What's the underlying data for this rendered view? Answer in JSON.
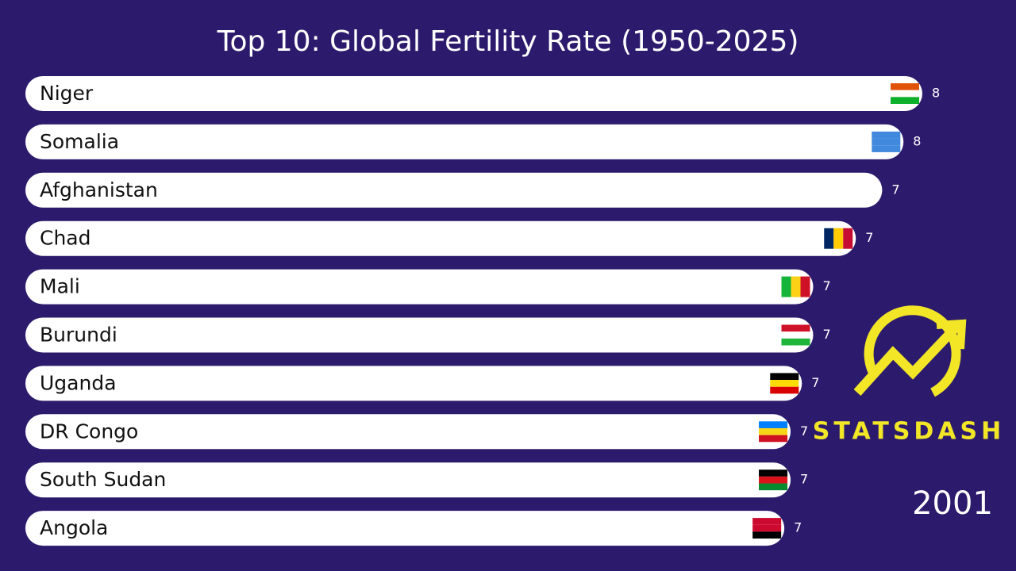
{
  "chart_data": {
    "type": "bar",
    "orientation": "horizontal",
    "title": "Top 10: Global Fertility Rate (1950-2025)",
    "categories": [
      "Niger",
      "Somalia",
      "Afghanistan",
      "Chad",
      "Mali",
      "Burundi",
      "Uganda",
      "DR Congo",
      "South Sudan",
      "Angola"
    ],
    "values": [
      7.7,
      7.55,
      7.38,
      7.17,
      6.83,
      6.83,
      6.74,
      6.65,
      6.65,
      6.6
    ],
    "value_labels": [
      "8",
      "8",
      "7",
      "7",
      "7",
      "7",
      "7",
      "7",
      "7",
      "7"
    ],
    "xlim": [
      0.55,
      7.7
    ],
    "color": "#ffffff",
    "year": "2001",
    "logo": "STATSDASH"
  }
}
